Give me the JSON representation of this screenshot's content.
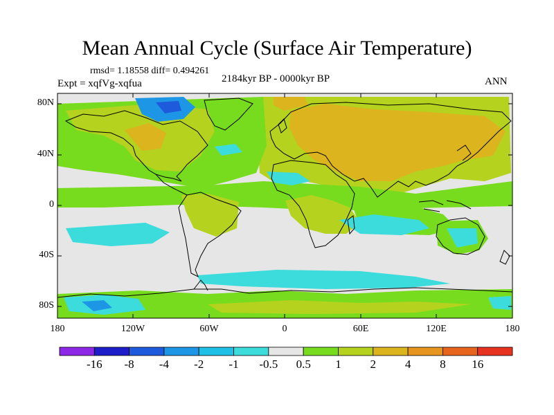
{
  "title": "Mean Annual Cycle (Surface Air Temperature)",
  "stats": "rmsd= 1.18558 diff= 0.494261",
  "experiment": "Expt = xqfVg-xqfua",
  "period": "2184kyr BP - 0000kyr BP",
  "season": "ANN",
  "lat_labels": [
    "80N",
    "40N",
    "0",
    "40S",
    "80S"
  ],
  "lon_labels": [
    "180",
    "120W",
    "60W",
    "0",
    "60E",
    "120E",
    "180"
  ],
  "colorbar": {
    "colors": [
      "#8c28e6",
      "#1e1ec8",
      "#1e5adc",
      "#1e96e6",
      "#1ec0e6",
      "#3cdcdc",
      "#e6e6e6",
      "#78dc1e",
      "#b4d21e",
      "#dcb41e",
      "#e6961e",
      "#e6641e",
      "#e6321e"
    ],
    "labels": [
      "-16",
      "-8",
      "-4",
      "-2",
      "-1",
      "-0.5",
      "0.5",
      "1",
      "2",
      "4",
      "8",
      "16"
    ]
  }
}
